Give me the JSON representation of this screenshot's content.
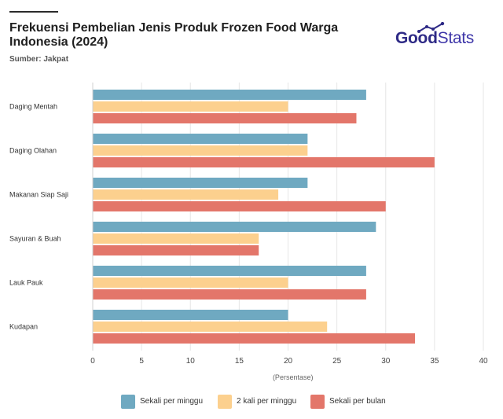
{
  "header": {
    "title": "Frekuensi Pembelian Jenis Produk Frozen Food Warga Indonesia (2024)",
    "source": "Sumber: Jakpat"
  },
  "logo": {
    "good": "Good",
    "stats": "Stats"
  },
  "colors": {
    "series1": "#6fa9c1",
    "series2": "#fcd08e",
    "series3": "#e3766a",
    "grid": "#e6e6e6",
    "logo": "#2e2a86"
  },
  "chart_data": {
    "type": "bar",
    "orientation": "horizontal",
    "categories": [
      "Daging Mentah",
      "Daging Olahan",
      "Makanan Siap Saji",
      "Sayuran & Buah",
      "Lauk Pauk",
      "Kudapan"
    ],
    "series": [
      {
        "name": "Sekali per minggu",
        "values": [
          28,
          22,
          22,
          29,
          28,
          20
        ]
      },
      {
        "name": "2 kali per minggu",
        "values": [
          20,
          22,
          19,
          17,
          20,
          24
        ]
      },
      {
        "name": "Sekali per bulan",
        "values": [
          27,
          35,
          30,
          17,
          28,
          33
        ]
      }
    ],
    "xlim": [
      0,
      40
    ],
    "xticks": [
      "0",
      "5",
      "10",
      "15",
      "20",
      "25",
      "30",
      "35",
      "40"
    ],
    "xlabel": "(Persentase)",
    "grid": true,
    "legend_position": "bottom"
  }
}
